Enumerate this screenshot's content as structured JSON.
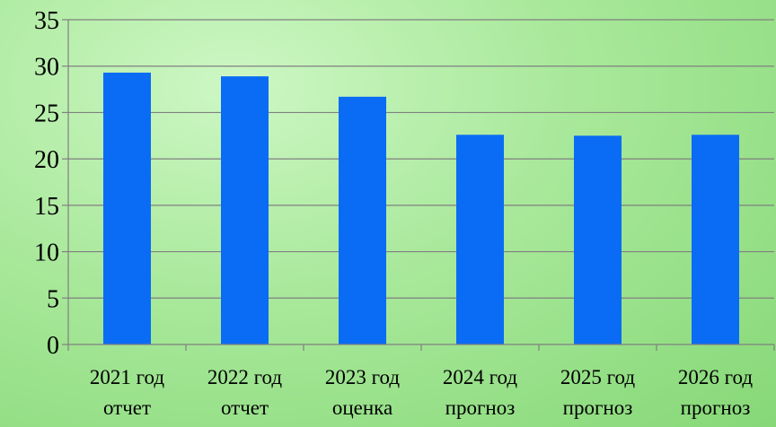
{
  "chart_data": {
    "type": "bar",
    "categories": [
      [
        "2021 год",
        "отчет"
      ],
      [
        "2022 год",
        "отчет"
      ],
      [
        "2023 год",
        "оценка"
      ],
      [
        "2024 год",
        "прогноз"
      ],
      [
        "2025 год",
        "прогноз"
      ],
      [
        "2026 год",
        "прогноз"
      ]
    ],
    "values": [
      29.3,
      28.9,
      26.7,
      22.6,
      22.5,
      22.6
    ],
    "ylim": [
      0,
      35
    ],
    "yticks": [
      0,
      5,
      10,
      15,
      20,
      25,
      30,
      35
    ],
    "grid": true,
    "bar_color": "#0a6cf5",
    "grid_color": "#808080"
  }
}
